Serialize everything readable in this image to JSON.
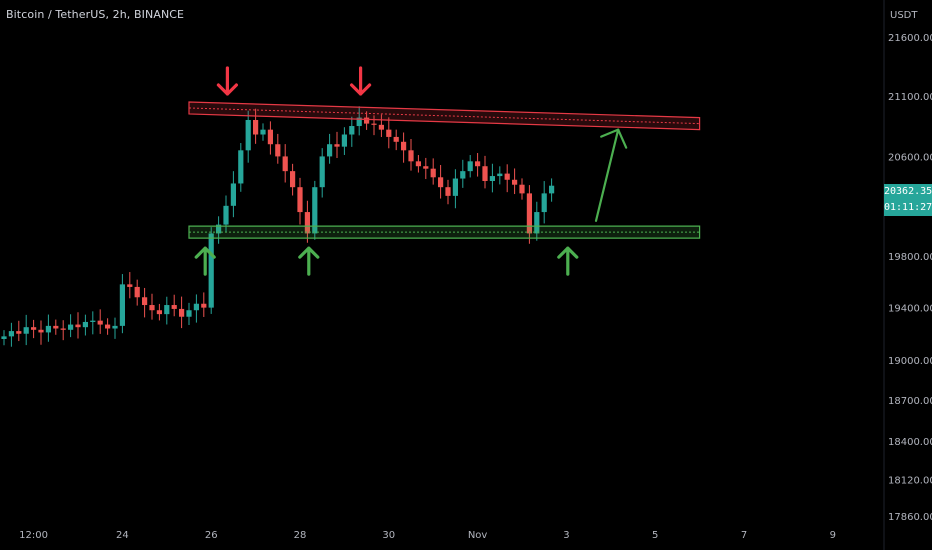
{
  "header": {
    "symbol_title": "Bitcoin / TetherUS, 2h, BINANCE",
    "currency": "USDT"
  },
  "price_badge": {
    "price": "20362.35",
    "countdown": "01:11:27"
  },
  "colors": {
    "background": "#000000",
    "up_candle": "#26a69a",
    "down_candle": "#ef5350",
    "resistance": "#e53945",
    "support": "#4caf50",
    "arrow_red": "#f23645",
    "arrow_green": "#4caf50",
    "axis_text": "#b2b5be"
  },
  "chart_data": {
    "type": "candlestick",
    "title": "Bitcoin / TetherUS, 2h, BINANCE",
    "ylabel": "USDT",
    "y_ticks": [
      "21600.00",
      "21100.00",
      "20600.00",
      "19800.00",
      "19400.00",
      "19000.00",
      "18700.00",
      "18400.00",
      "18120.00",
      "17860.00"
    ],
    "y_tick_values": [
      21600,
      21100,
      20600,
      19800,
      19400,
      19000,
      18700,
      18400,
      18120,
      17860
    ],
    "x_ticks": [
      "12:00",
      "24",
      "26",
      "28",
      "30",
      "Nov",
      "3",
      "5",
      "7",
      "9"
    ],
    "x_tick_index": [
      4,
      16,
      28,
      40,
      52,
      64,
      76,
      88,
      100,
      112
    ],
    "y_scale": "log",
    "last_price": 20362.35,
    "candles_close": [
      19180,
      19220,
      19200,
      19250,
      19230,
      19210,
      19260,
      19240,
      19230,
      19270,
      19250,
      19290,
      19300,
      19270,
      19240,
      19260,
      19580,
      19560,
      19480,
      19420,
      19380,
      19350,
      19420,
      19390,
      19330,
      19380,
      19430,
      19400,
      19980,
      20050,
      20200,
      20380,
      20650,
      20900,
      20780,
      20820,
      20700,
      20600,
      20480,
      20350,
      20150,
      19980,
      20350,
      20600,
      20700,
      20680,
      20780,
      20850,
      20920,
      20870,
      20860,
      20820,
      20760,
      20720,
      20650,
      20560,
      20520,
      20500,
      20430,
      20350,
      20280,
      20420,
      20480,
      20560,
      20520,
      20400,
      20440,
      20460,
      20410,
      20370,
      20300,
      19980,
      20150,
      20300,
      20362
    ],
    "resistance_band": {
      "start_index": 25,
      "end_index": 94,
      "start_price": 21000,
      "end_price": 20870
    },
    "support_band": {
      "start_index": 25,
      "end_index": 94,
      "start_price": 19990,
      "end_price": 19990
    },
    "annotations": {
      "down_arrows_at_index": [
        31,
        49
      ],
      "up_arrows_at_index": [
        28,
        42,
        77
      ],
      "projection": {
        "from_index": 80,
        "from_price": 20080,
        "to_index": 83,
        "to_price": 20820
      }
    },
    "grid": false
  }
}
